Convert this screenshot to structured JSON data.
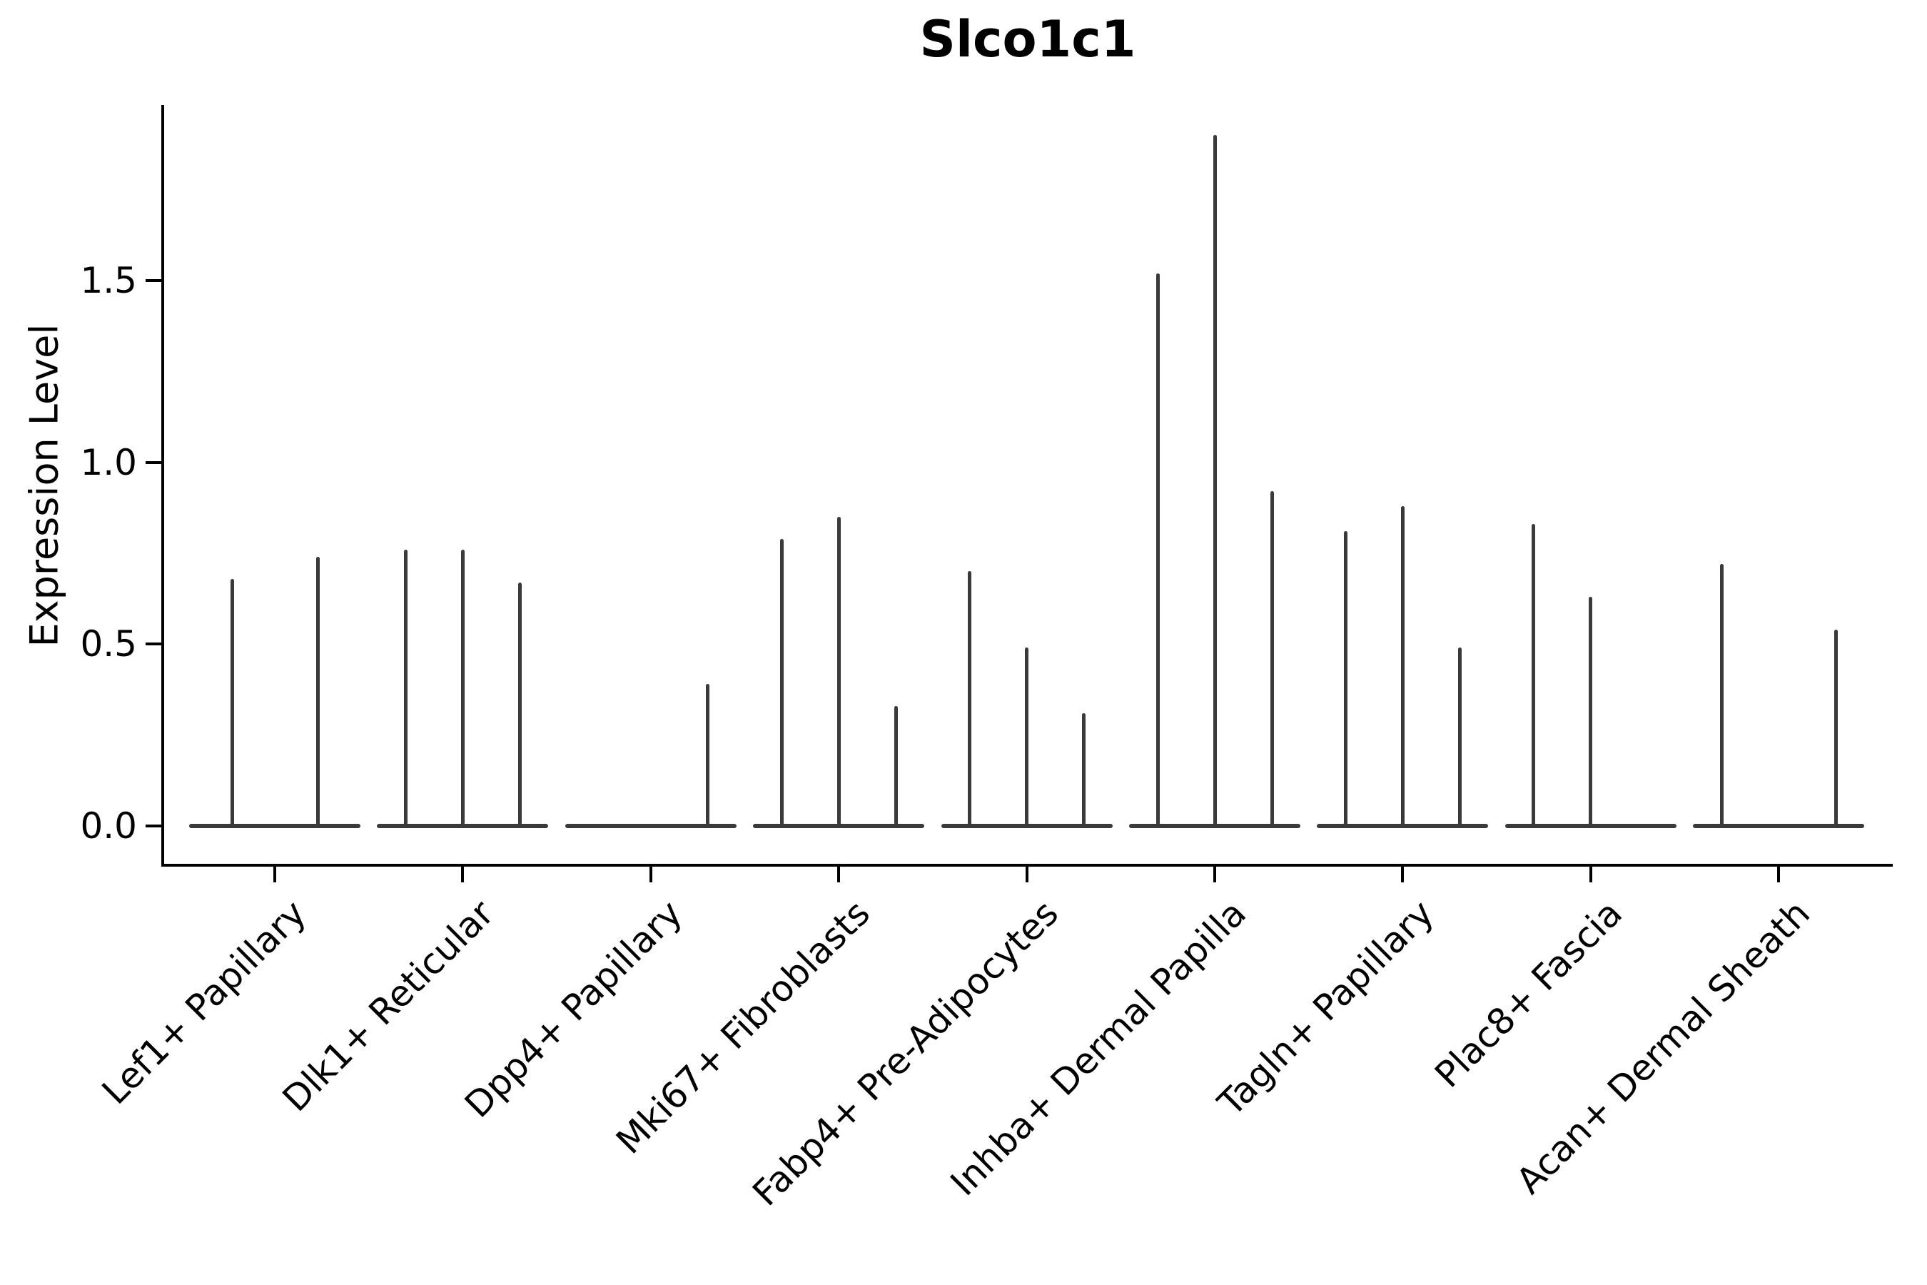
{
  "title": "Slco1c1",
  "y_axis": {
    "label": "Expression Level",
    "tick_labels": [
      "0.0",
      "0.5",
      "1.0",
      "1.5"
    ],
    "tick_values": [
      0.0,
      0.5,
      1.0,
      1.5
    ]
  },
  "colors": {
    "violin": "#3a3a3a",
    "axis": "#000000",
    "text": "#000000",
    "background": "#ffffff"
  },
  "chart_data": {
    "type": "violin",
    "title": "Slco1c1",
    "xlabel": "",
    "ylabel": "Expression Level",
    "ylim": [
      0,
      1.99
    ],
    "yticks": [
      0.0,
      0.5,
      1.0,
      1.5
    ],
    "grid": false,
    "legend": "none",
    "description": "Collapsed single-gene violin plot; each category shows a flat density baseline at 0 with thin vertical tails reaching each sub-violin's maximum expression value. A value of 0 means an all-zero violin (flat baseline, no spike).",
    "categories": [
      "Lef1+ Papillary",
      "Dlk1+ Reticular",
      "Dpp4+ Papillary",
      "Mki67+ Fibroblasts",
      "Fabp4+ Pre-Adipocytes",
      "Inhba+ Dermal Papilla",
      "Tagln+ Papillary",
      "Plac8+ Fascia",
      "Acan+ Dermal Sheath"
    ],
    "groups": [
      {
        "label": "Lef1+ Papillary",
        "violin_maxima": [
          0.68,
          0.74
        ]
      },
      {
        "label": "Dlk1+ Reticular",
        "violin_maxima": [
          0.76,
          0.76,
          0.67
        ]
      },
      {
        "label": "Dpp4+ Papillary",
        "violin_maxima": [
          0,
          0,
          0.39
        ]
      },
      {
        "label": "Mki67+ Fibroblasts",
        "violin_maxima": [
          0.79,
          0.85,
          0.33
        ]
      },
      {
        "label": "Fabp4+ Pre-Adipocytes",
        "violin_maxima": [
          0.7,
          0.49,
          0.31
        ]
      },
      {
        "label": "Inhba+ Dermal Papilla",
        "violin_maxima": [
          1.52,
          1.9,
          0.92
        ]
      },
      {
        "label": "Tagln+ Papillary",
        "violin_maxima": [
          0.81,
          0.88,
          0.49
        ]
      },
      {
        "label": "Plac8+ Fascia",
        "violin_maxima": [
          0.83,
          0.63,
          0
        ]
      },
      {
        "label": "Acan+ Dermal Sheath",
        "violin_maxima": [
          0.72,
          0,
          0.54
        ]
      }
    ]
  }
}
